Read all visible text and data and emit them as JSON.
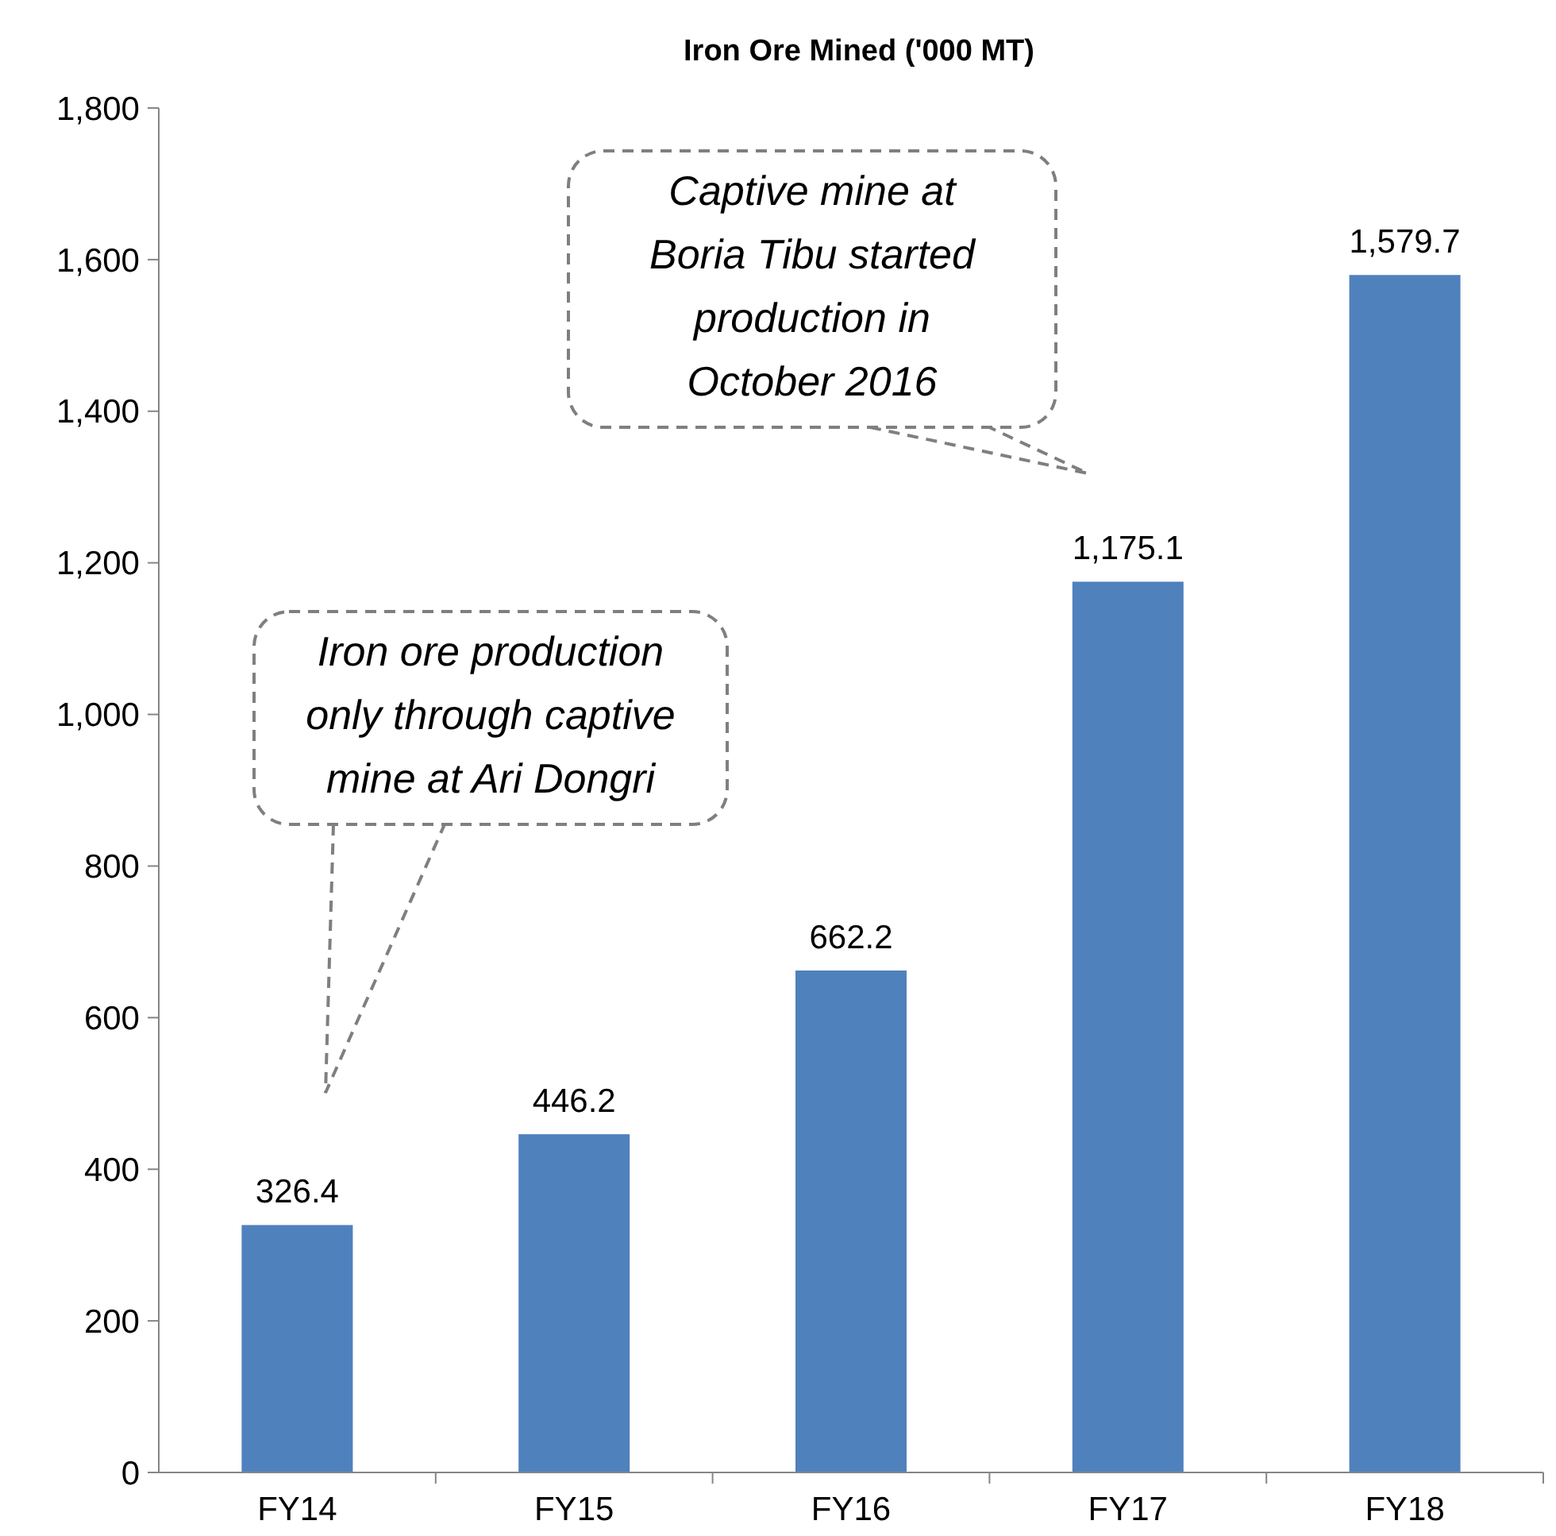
{
  "chart_data": {
    "type": "bar",
    "title": "Iron Ore Mined ('000 MT)",
    "categories": [
      "FY14",
      "FY15",
      "FY16",
      "FY17",
      "FY18"
    ],
    "values": [
      326.4,
      446.2,
      662.2,
      1175.1,
      1579.7
    ],
    "value_labels": [
      "326.4",
      "446.2",
      "662.2",
      "1,175.1",
      "1,579.7"
    ],
    "color": "#4f81bd",
    "ylim": [
      0,
      1800
    ],
    "yticks": [
      0,
      200,
      400,
      600,
      800,
      {
        "value": 1000,
        "label": "1,000"
      },
      {
        "value": 1200,
        "label": "1,200"
      },
      {
        "value": 1400,
        "label": "1,400"
      },
      {
        "value": 1600,
        "label": "1,600"
      },
      {
        "value": 1800,
        "label": "1,800"
      }
    ],
    "grid": false,
    "annotations": [
      "Iron ore production only through captive mine at Ari Dongri",
      "Captive mine at Boria Tibu started production in October 2016"
    ]
  }
}
